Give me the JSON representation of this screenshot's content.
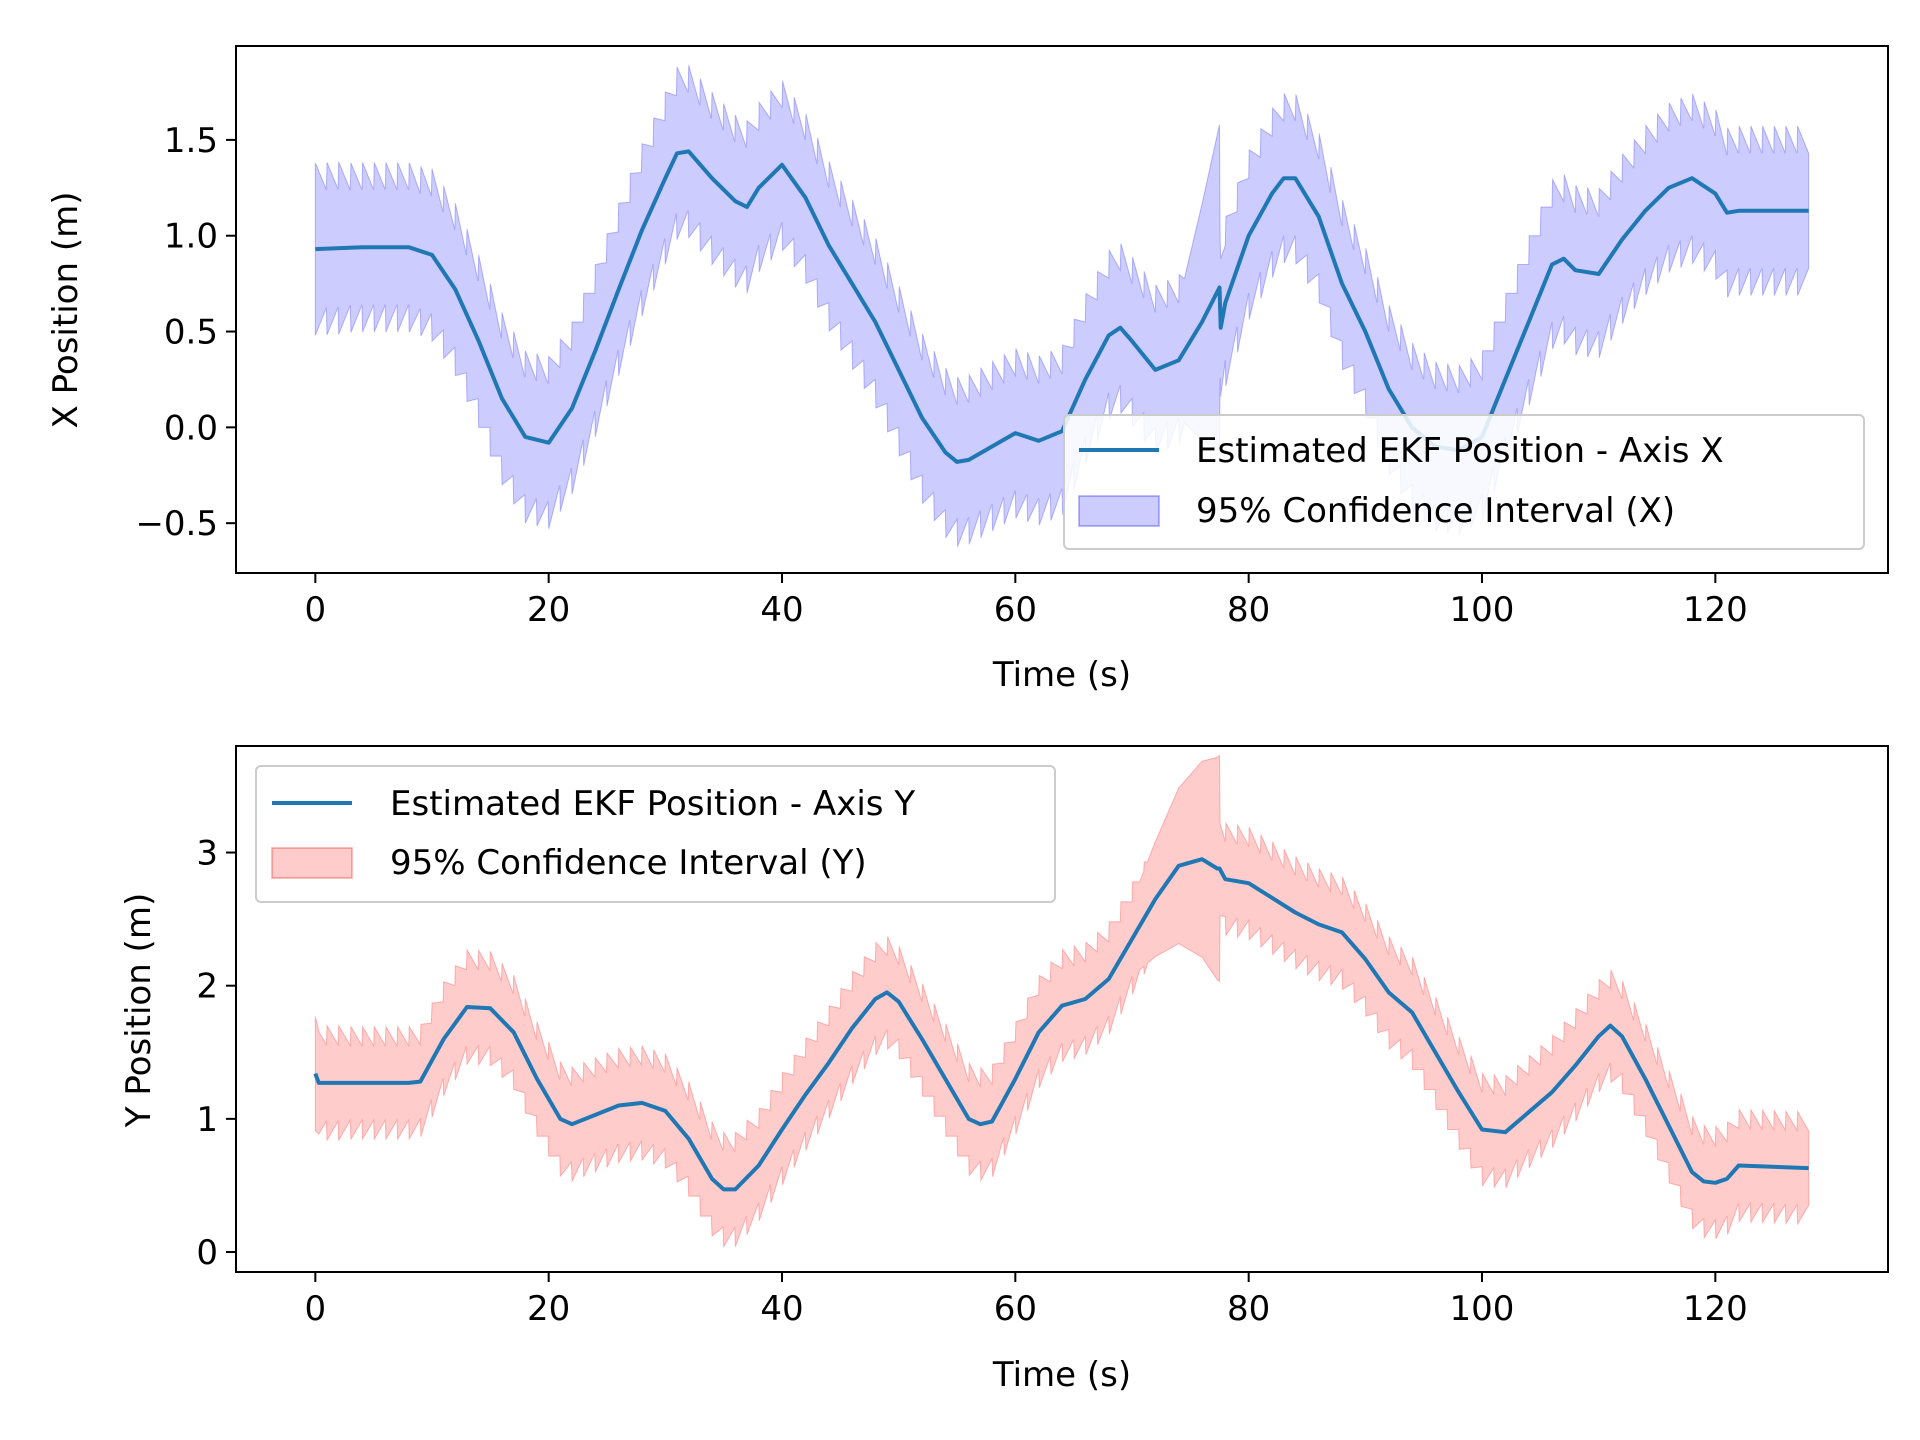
{
  "colors": {
    "line": "#1f77b4",
    "band_x": "#0000ff",
    "band_y": "#ff0000",
    "axes": "#000000",
    "background": "#ffffff"
  },
  "chart_data": [
    {
      "type": "line",
      "xlabel": "Time (s)",
      "ylabel": "X Position (m)",
      "xlim": [
        -6.8,
        134.8
      ],
      "ylim": [
        -0.76,
        1.99
      ],
      "xticks": [
        0,
        20,
        40,
        60,
        80,
        100,
        120
      ],
      "xtick_labels": [
        "0",
        "20",
        "40",
        "60",
        "80",
        "100",
        "120"
      ],
      "yticks": [
        -0.5,
        0.0,
        0.5,
        1.0,
        1.5
      ],
      "ytick_labels": [
        "−0.5",
        "0.0",
        "0.5",
        "1.0",
        "1.5"
      ],
      "grid": false,
      "legend_position": "lower-right",
      "series": [
        {
          "name": "Estimated EKF Position - Axis X",
          "kind": "line",
          "x": [
            0,
            4,
            8,
            10,
            12,
            14,
            16,
            18,
            20,
            22,
            24,
            26,
            28,
            30,
            31,
            32,
            34,
            36,
            37,
            38,
            40,
            42,
            44,
            46,
            48,
            50,
            52,
            54,
            55,
            56,
            58,
            60,
            62,
            64,
            66,
            68,
            69,
            70,
            72,
            74,
            76,
            77.5,
            77.6,
            78,
            80,
            82,
            83,
            84,
            86,
            88,
            90,
            92,
            94,
            96,
            98,
            100,
            102,
            104,
            106,
            107,
            108,
            110,
            112,
            114,
            116,
            118,
            120,
            121,
            122,
            128
          ],
          "y": [
            0.93,
            0.94,
            0.94,
            0.9,
            0.72,
            0.45,
            0.15,
            -0.05,
            -0.08,
            0.1,
            0.4,
            0.72,
            1.03,
            1.3,
            1.43,
            1.44,
            1.3,
            1.18,
            1.15,
            1.25,
            1.37,
            1.2,
            0.95,
            0.75,
            0.55,
            0.3,
            0.05,
            -0.13,
            -0.18,
            -0.17,
            -0.1,
            -0.03,
            -0.07,
            -0.02,
            0.25,
            0.48,
            0.52,
            0.45,
            0.3,
            0.35,
            0.55,
            0.73,
            0.52,
            0.65,
            1.0,
            1.22,
            1.3,
            1.3,
            1.1,
            0.75,
            0.5,
            0.2,
            0.0,
            -0.1,
            -0.12,
            -0.05,
            0.25,
            0.55,
            0.85,
            0.88,
            0.82,
            0.8,
            0.98,
            1.13,
            1.25,
            1.3,
            1.22,
            1.12,
            1.13,
            1.13
          ]
        },
        {
          "name": "95% Confidence Interval (X)",
          "kind": "band",
          "base_half_width": 0.3,
          "ripple_amplitude": 0.15,
          "ripple_period": 1.0,
          "sudden_widening": {
            "start": 74,
            "end": 77.5,
            "max_half_width": 0.85
          }
        }
      ]
    },
    {
      "type": "line",
      "xlabel": "Time (s)",
      "ylabel": "Y Position (m)",
      "xlim": [
        -6.8,
        134.8
      ],
      "ylim": [
        -0.15,
        3.8
      ],
      "xticks": [
        0,
        20,
        40,
        60,
        80,
        100,
        120
      ],
      "xtick_labels": [
        "0",
        "20",
        "40",
        "60",
        "80",
        "100",
        "120"
      ],
      "yticks": [
        0,
        1,
        2,
        3
      ],
      "ytick_labels": [
        "0",
        "1",
        "2",
        "3"
      ],
      "grid": false,
      "legend_position": "upper-left",
      "series": [
        {
          "name": "Estimated EKF Position - Axis Y",
          "kind": "line",
          "x": [
            0,
            0.3,
            4,
            8,
            9,
            11,
            13,
            15,
            17,
            19,
            21,
            22,
            24,
            26,
            28,
            30,
            32,
            34,
            35,
            36,
            38,
            40,
            42,
            44,
            46,
            48,
            49,
            50,
            52,
            54,
            56,
            57,
            58,
            60,
            62,
            64,
            66,
            68,
            70,
            72,
            74,
            76,
            77.3,
            77.5,
            78,
            80,
            82,
            84,
            86,
            88,
            90,
            92,
            94,
            96,
            98,
            100,
            102,
            104,
            106,
            108,
            110,
            111,
            112,
            114,
            116,
            118,
            119,
            120,
            121,
            122,
            128
          ],
          "y": [
            1.34,
            1.27,
            1.27,
            1.27,
            1.28,
            1.6,
            1.84,
            1.83,
            1.65,
            1.3,
            1.0,
            0.96,
            1.03,
            1.1,
            1.12,
            1.06,
            0.85,
            0.55,
            0.47,
            0.47,
            0.65,
            0.92,
            1.18,
            1.42,
            1.68,
            1.9,
            1.95,
            1.88,
            1.6,
            1.3,
            1.0,
            0.96,
            0.98,
            1.3,
            1.65,
            1.85,
            1.9,
            2.05,
            2.35,
            2.65,
            2.9,
            2.95,
            2.88,
            2.88,
            2.8,
            2.77,
            2.66,
            2.55,
            2.46,
            2.4,
            2.2,
            1.95,
            1.8,
            1.5,
            1.2,
            0.92,
            0.9,
            1.05,
            1.2,
            1.4,
            1.62,
            1.7,
            1.62,
            1.3,
            0.95,
            0.6,
            0.53,
            0.52,
            0.55,
            0.65,
            0.63
          ]
        },
        {
          "name": "95% Confidence Interval (Y)",
          "kind": "band",
          "base_half_width": 0.28,
          "ripple_amplitude": 0.15,
          "ripple_period": 1.0,
          "sudden_widening": {
            "start": 70,
            "end": 77.5,
            "max_half_width": 0.85
          }
        }
      ]
    }
  ]
}
